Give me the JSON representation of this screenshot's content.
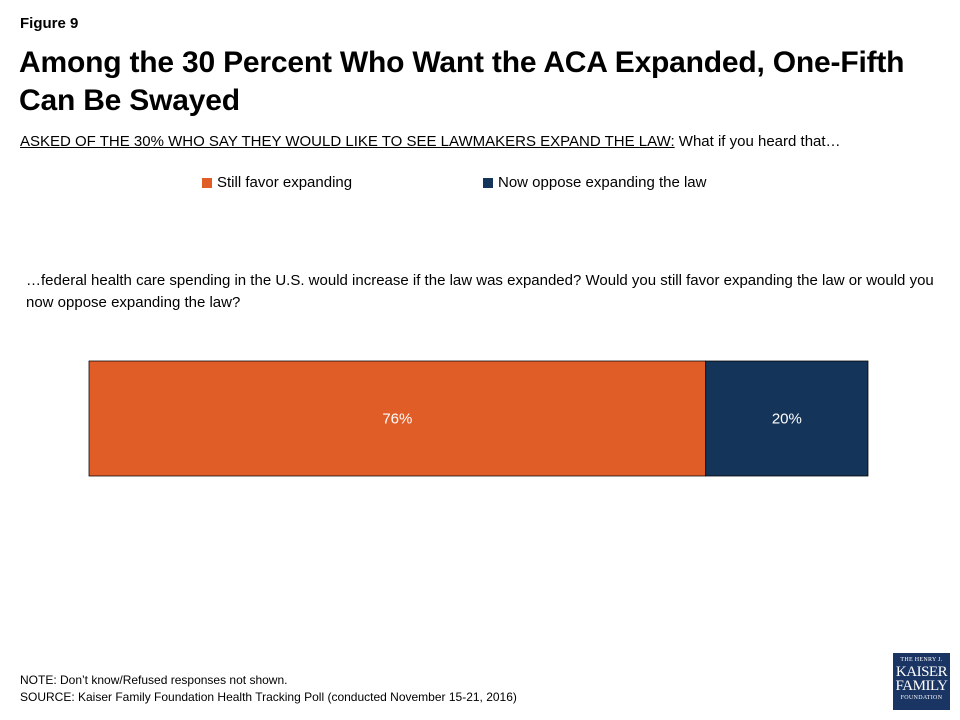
{
  "figure_label": "Figure 9",
  "title": "Among the 30 Percent Who Want the ACA Expanded, One-Fifth Can Be Swayed",
  "subtitle_underlined": "ASKED OF THE 30% WHO SAY THEY WOULD LIKE TO SEE LAWMAKERS EXPAND THE LAW:",
  "subtitle_rest": " What if you heard that…",
  "question": "…federal health care spending in the U.S. would increase if the law was expanded? Would you still favor expanding the law or would you now oppose expanding the law?",
  "colors": {
    "favor": "#e05d28",
    "oppose": "#14345a"
  },
  "chart_data": {
    "type": "bar",
    "orientation": "horizontal",
    "stacked": true,
    "categories": [
      ""
    ],
    "series": [
      {
        "name": "Still favor expanding",
        "values": [
          76
        ],
        "labels": [
          "76%"
        ],
        "color": "#e05d28"
      },
      {
        "name": "Now oppose expanding the law",
        "values": [
          20
        ],
        "labels": [
          "20%"
        ],
        "color": "#14345a"
      }
    ],
    "xlim": [
      0,
      96
    ],
    "grid": false,
    "legend": "top-center"
  },
  "note": "NOTE: Don’t know/Refused responses not shown.",
  "source": "SOURCE: Kaiser Family Foundation Health Tracking Poll (conducted November 15-21, 2016)",
  "logo": {
    "line1": "THE HENRY J.",
    "line2": "KAISER",
    "line3": "FAMILY",
    "line4": "FOUNDATION"
  }
}
